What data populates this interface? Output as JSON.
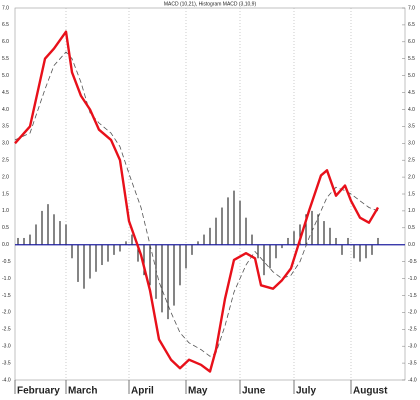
{
  "chart_data": {
    "type": "line",
    "title": "MACD (10,21), Histogram MACD (3,10,9)",
    "xlim": [
      0,
      130
    ],
    "xticks": [
      {
        "value": 0,
        "label": "February"
      },
      {
        "value": 17,
        "label": "March"
      },
      {
        "value": 38,
        "label": "April"
      },
      {
        "value": 57,
        "label": "May"
      },
      {
        "value": 75,
        "label": "June"
      },
      {
        "value": 93,
        "label": "July"
      },
      {
        "value": 112,
        "label": "August"
      }
    ],
    "ylim": [
      -4,
      7
    ],
    "yticks": [
      {
        "value": 7,
        "label": "7.0"
      },
      6.5,
      {
        "value": 6,
        "label": "6.0"
      },
      5.5,
      {
        "value": 5,
        "label": "5.0"
      },
      4.5,
      {
        "value": 4,
        "label": "4.0"
      },
      3.5,
      {
        "value": 3,
        "label": "3.0"
      },
      2.5,
      {
        "value": 2,
        "label": "2.0"
      },
      1.5,
      {
        "value": 1,
        "label": "1.0"
      },
      0.5,
      {
        "value": 0,
        "label": "0.0"
      },
      -0.5,
      {
        "value": -1,
        "label": "-1.0"
      },
      -1.5,
      {
        "value": -2,
        "label": "-2.0"
      },
      -2.5,
      {
        "value": -3,
        "label": "-3.0"
      },
      -3.5,
      {
        "value": -4,
        "label": "-4.0"
      }
    ],
    "grid": true,
    "zero_line_color": "#2020a0",
    "series": [
      {
        "type": "bar",
        "color": "#333333",
        "x": [
          1,
          3,
          5,
          7,
          9,
          11,
          13,
          15,
          17,
          19,
          21,
          23,
          25,
          27,
          29,
          31,
          33,
          35,
          37,
          39,
          41,
          43,
          45,
          47,
          49,
          51,
          53,
          55,
          57,
          59,
          61,
          63,
          65,
          67,
          69,
          71,
          73,
          75,
          77,
          79,
          81,
          83,
          85,
          87,
          89,
          91,
          93,
          95,
          97,
          99,
          101,
          103,
          105,
          107,
          109,
          111,
          113,
          115,
          117,
          119,
          121
        ],
        "values": [
          0.2,
          0.2,
          0.3,
          0.6,
          1.0,
          1.2,
          0.9,
          0.7,
          0.6,
          -0.4,
          -1.1,
          -1.3,
          -1.0,
          -0.8,
          -0.6,
          -0.5,
          -0.3,
          -0.2,
          0.1,
          0.3,
          -0.5,
          -0.9,
          -1.2,
          -1.6,
          -2.0,
          -2.2,
          -1.8,
          -1.2,
          -0.7,
          -0.3,
          0.1,
          0.3,
          0.5,
          0.8,
          1.1,
          1.4,
          1.6,
          1.3,
          0.8,
          0.3,
          -0.4,
          -0.9,
          -0.7,
          -0.4,
          -0.1,
          0.2,
          0.4,
          0.6,
          0.9,
          1.0,
          0.9,
          0.7,
          0.5,
          0.2,
          -0.3,
          0.2,
          -0.4,
          -0.5,
          -0.4,
          -0.3,
          0.2
        ]
      },
      {
        "type": "line",
        "color": "#555555",
        "dash": true,
        "x": [
          0,
          5,
          10,
          13,
          17,
          19,
          22,
          25,
          28,
          32,
          35,
          38,
          42,
          45,
          48,
          52,
          55,
          58,
          62,
          65,
          67,
          70,
          73,
          77,
          80,
          82,
          86,
          89,
          92,
          95,
          98,
          102,
          104,
          107,
          110,
          112,
          115,
          118,
          121
        ],
        "values": [
          3.1,
          3.3,
          4.6,
          5.3,
          5.7,
          5.5,
          4.8,
          3.9,
          3.6,
          3.3,
          2.9,
          2.1,
          1.1,
          0.0,
          -1.1,
          -2.0,
          -2.6,
          -2.9,
          -3.1,
          -3.3,
          -3.2,
          -2.4,
          -1.4,
          -0.6,
          -0.2,
          -0.4,
          -0.8,
          -1.0,
          -0.9,
          -0.5,
          0.2,
          1.0,
          1.4,
          1.7,
          1.6,
          1.5,
          1.3,
          1.1,
          1.0
        ]
      },
      {
        "type": "line",
        "color": "#e8101a",
        "dash": false,
        "x": [
          0,
          5,
          10,
          13,
          17,
          19,
          22,
          25,
          28,
          32,
          35,
          38,
          42,
          45,
          48,
          52,
          55,
          58,
          62,
          65,
          67,
          70,
          73,
          77,
          80,
          82,
          86,
          89,
          92,
          95,
          98,
          102,
          104,
          107,
          110,
          112,
          115,
          118,
          121
        ],
        "values": [
          3.0,
          3.5,
          5.5,
          5.8,
          6.3,
          5.1,
          4.4,
          4.0,
          3.4,
          3.1,
          2.5,
          0.7,
          -0.3,
          -1.35,
          -2.8,
          -3.4,
          -3.65,
          -3.4,
          -3.55,
          -3.75,
          -3.1,
          -1.6,
          -0.45,
          -0.25,
          -0.4,
          -1.2,
          -1.3,
          -1.05,
          -0.7,
          0.15,
          1.0,
          2.05,
          2.2,
          1.45,
          1.75,
          1.3,
          0.8,
          0.65,
          1.1
        ]
      }
    ]
  }
}
